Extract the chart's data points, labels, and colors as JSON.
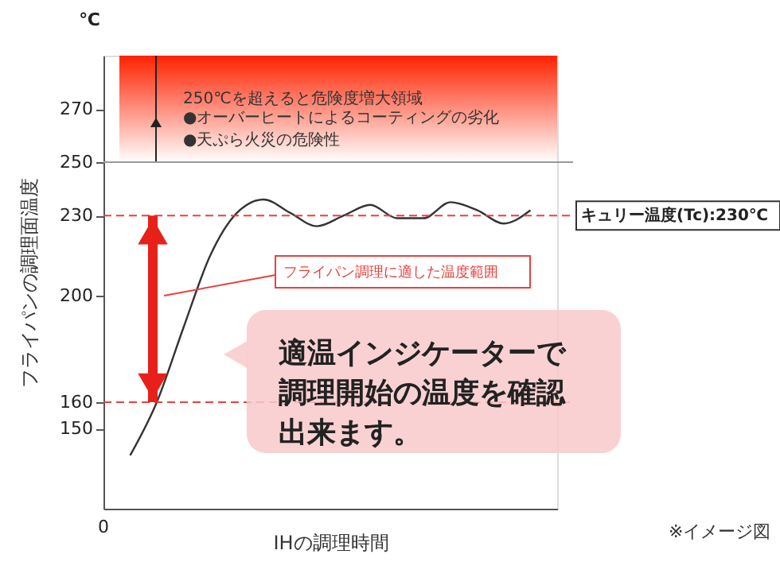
{
  "chart_data": {
    "type": "line",
    "xlabel": "IHの調理時間",
    "ylabel": "フライパンの調理面温度",
    "categories": [
      null,
      null,
      null,
      null,
      null,
      null,
      null,
      null,
      null,
      null,
      null,
      null,
      null,
      null,
      null,
      null
    ],
    "series": [
      {
        "color": "#333333",
        "values": [
          140,
          160,
          188,
          215,
          231,
          236,
          231,
          226,
          230,
          234,
          229,
          229,
          235,
          232,
          227,
          232
        ]
      }
    ],
    "ylim": [
      120,
      290
    ],
    "yticks": [
      150,
      160,
      200,
      230,
      250,
      270
    ],
    "tick_labels": "y",
    "grid": false,
    "legend": false,
    "marker": "none",
    "line_style": "solid",
    "ref_lines": [
      {
        "axis": "y",
        "value": 230,
        "label": "キュリー温度(Tc):230℃",
        "color": "#e8413c",
        "line_style": "dashed"
      },
      {
        "axis": "y",
        "value": 160,
        "color": "#e8413c",
        "line_style": "dashed"
      },
      {
        "axis": "y",
        "value": 250,
        "color": "#999999",
        "line_style": "solid"
      }
    ],
    "bands": [
      {
        "axis": "y",
        "from": 250,
        "to": 290,
        "label": "250℃を超えると危険度増大領域",
        "color": "#ff2200"
      }
    ],
    "annotations": [
      "℃",
      "●オーバーヒートによるコーティングの劣化",
      "●天ぷら火災の危険性",
      "フライパン調理に適した温度範囲",
      "適温インジケーターで調理開始の温度を確認出来ます。",
      "※イメージ図",
      "0"
    ]
  }
}
